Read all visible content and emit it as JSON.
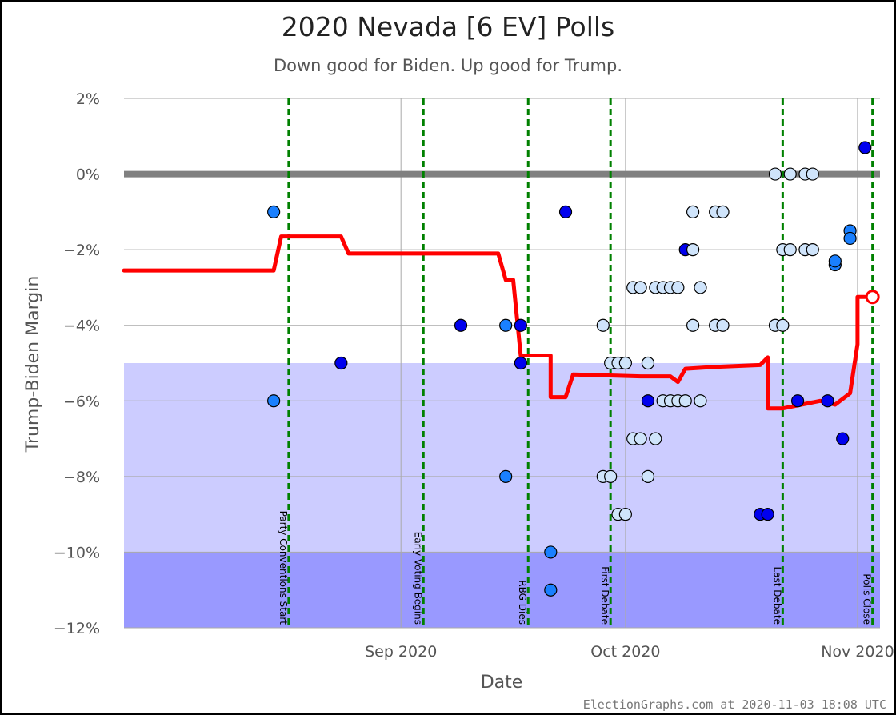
{
  "title": "2020 Nevada [6 EV] Polls",
  "subtitle": "Down good for Biden. Up good for Trump.",
  "credit": "ElectionGraphs.com at 2020-11-03 18:08 UTC",
  "chart_data": {
    "type": "scatter",
    "xlabel": "Date",
    "ylabel": "Trump-Biden Margin",
    "xlim": [
      "2020-07-26",
      "2020-11-04"
    ],
    "ylim": [
      -12,
      2
    ],
    "yticks": [
      2,
      0,
      -2,
      -4,
      -6,
      -8,
      -10,
      -12
    ],
    "ytick_labels": [
      "2%",
      "0%",
      "−2%",
      "−4%",
      "−6%",
      "−8%",
      "−10%",
      "−12%"
    ],
    "xticks": [
      {
        "date": "2020-09-01",
        "label": "Sep 2020"
      },
      {
        "date": "2020-10-01",
        "label": "Oct 2020"
      },
      {
        "date": "2020-11-01",
        "label": "Nov 2020"
      }
    ],
    "bands": [
      {
        "from": -5,
        "to": -10,
        "color": "#ccccff"
      },
      {
        "from": -10,
        "to": -12,
        "color": "#9999ff"
      }
    ],
    "zero_line_color": "#808080",
    "events": [
      {
        "date": "2020-08-17",
        "label": "Party Conventions Start"
      },
      {
        "date": "2020-09-04",
        "label": "Early Voting Begins"
      },
      {
        "date": "2020-09-18",
        "label": "RBG Dies"
      },
      {
        "date": "2020-09-29",
        "label": "First Debate"
      },
      {
        "date": "2020-10-22",
        "label": "Last Debate"
      },
      {
        "date": "2020-11-03",
        "label": "Polls Close"
      }
    ],
    "average_color": "#ff0000",
    "average": [
      {
        "x": "2020-07-26",
        "y": -2.55
      },
      {
        "x": "2020-08-15",
        "y": -2.55
      },
      {
        "x": "2020-08-16",
        "y": -1.65
      },
      {
        "x": "2020-08-24",
        "y": -1.65
      },
      {
        "x": "2020-08-25",
        "y": -2.1
      },
      {
        "x": "2020-09-14",
        "y": -2.1
      },
      {
        "x": "2020-09-15",
        "y": -2.8
      },
      {
        "x": "2020-09-16",
        "y": -2.8
      },
      {
        "x": "2020-09-17",
        "y": -4.8
      },
      {
        "x": "2020-09-21",
        "y": -4.8
      },
      {
        "x": "2020-09-21",
        "y": -5.9
      },
      {
        "x": "2020-09-23",
        "y": -5.9
      },
      {
        "x": "2020-09-24",
        "y": -5.3
      },
      {
        "x": "2020-10-03",
        "y": -5.35
      },
      {
        "x": "2020-10-07",
        "y": -5.35
      },
      {
        "x": "2020-10-08",
        "y": -5.5
      },
      {
        "x": "2020-10-09",
        "y": -5.15
      },
      {
        "x": "2020-10-13",
        "y": -5.1
      },
      {
        "x": "2020-10-19",
        "y": -5.05
      },
      {
        "x": "2020-10-20",
        "y": -4.85
      },
      {
        "x": "2020-10-20",
        "y": -6.2
      },
      {
        "x": "2020-10-22",
        "y": -6.2
      },
      {
        "x": "2020-10-27",
        "y": -6.0
      },
      {
        "x": "2020-10-29",
        "y": -6.1
      },
      {
        "x": "2020-10-31",
        "y": -5.8
      },
      {
        "x": "2020-11-01",
        "y": -4.5
      },
      {
        "x": "2020-11-01",
        "y": -3.25
      },
      {
        "x": "2020-11-03",
        "y": -3.25
      }
    ],
    "current_average": {
      "x": "2020-11-03",
      "y": -3.25
    },
    "poll_colors": {
      "recent": "#0000ee",
      "mid": "#1a80ff",
      "old": "#cfe4fb"
    },
    "polls": [
      {
        "x": "2020-08-15",
        "y": -1,
        "c": "mid"
      },
      {
        "x": "2020-08-15",
        "y": -6,
        "c": "mid"
      },
      {
        "x": "2020-08-24",
        "y": -5,
        "c": "recent"
      },
      {
        "x": "2020-09-09",
        "y": -4,
        "c": "recent"
      },
      {
        "x": "2020-09-15",
        "y": -4,
        "c": "mid"
      },
      {
        "x": "2020-09-15",
        "y": -8,
        "c": "mid"
      },
      {
        "x": "2020-09-17",
        "y": -5,
        "c": "recent"
      },
      {
        "x": "2020-09-17",
        "y": -4,
        "c": "recent"
      },
      {
        "x": "2020-09-21",
        "y": -10,
        "c": "mid"
      },
      {
        "x": "2020-09-21",
        "y": -11,
        "c": "mid"
      },
      {
        "x": "2020-09-23",
        "y": -1,
        "c": "recent"
      },
      {
        "x": "2020-09-28",
        "y": -4,
        "c": "old"
      },
      {
        "x": "2020-09-28",
        "y": -8,
        "c": "old"
      },
      {
        "x": "2020-09-29",
        "y": -8,
        "c": "old"
      },
      {
        "x": "2020-09-29",
        "y": -5,
        "c": "old"
      },
      {
        "x": "2020-09-30",
        "y": -9,
        "c": "old"
      },
      {
        "x": "2020-09-30",
        "y": -5,
        "c": "old"
      },
      {
        "x": "2020-10-01",
        "y": -5,
        "c": "old"
      },
      {
        "x": "2020-10-01",
        "y": -9,
        "c": "old"
      },
      {
        "x": "2020-10-02",
        "y": -3,
        "c": "old"
      },
      {
        "x": "2020-10-02",
        "y": -7,
        "c": "old"
      },
      {
        "x": "2020-10-03",
        "y": -3,
        "c": "old"
      },
      {
        "x": "2020-10-03",
        "y": -7,
        "c": "old"
      },
      {
        "x": "2020-10-04",
        "y": -6,
        "c": "recent"
      },
      {
        "x": "2020-10-04",
        "y": -5,
        "c": "old"
      },
      {
        "x": "2020-10-04",
        "y": -8,
        "c": "old"
      },
      {
        "x": "2020-10-05",
        "y": -3,
        "c": "old"
      },
      {
        "x": "2020-10-05",
        "y": -7,
        "c": "old"
      },
      {
        "x": "2020-10-06",
        "y": -3,
        "c": "old"
      },
      {
        "x": "2020-10-06",
        "y": -6,
        "c": "old"
      },
      {
        "x": "2020-10-07",
        "y": -3,
        "c": "old"
      },
      {
        "x": "2020-10-07",
        "y": -6,
        "c": "old"
      },
      {
        "x": "2020-10-08",
        "y": -3,
        "c": "old"
      },
      {
        "x": "2020-10-08",
        "y": -6,
        "c": "old"
      },
      {
        "x": "2020-10-09",
        "y": -2,
        "c": "recent"
      },
      {
        "x": "2020-10-09",
        "y": -6,
        "c": "old"
      },
      {
        "x": "2020-10-10",
        "y": -2,
        "c": "old"
      },
      {
        "x": "2020-10-10",
        "y": -1,
        "c": "old"
      },
      {
        "x": "2020-10-10",
        "y": -4,
        "c": "old"
      },
      {
        "x": "2020-10-11",
        "y": -3,
        "c": "old"
      },
      {
        "x": "2020-10-11",
        "y": -6,
        "c": "old"
      },
      {
        "x": "2020-10-13",
        "y": -1,
        "c": "old"
      },
      {
        "x": "2020-10-13",
        "y": -4,
        "c": "old"
      },
      {
        "x": "2020-10-14",
        "y": -1,
        "c": "old"
      },
      {
        "x": "2020-10-14",
        "y": -4,
        "c": "old"
      },
      {
        "x": "2020-10-19",
        "y": -9,
        "c": "recent"
      },
      {
        "x": "2020-10-20",
        "y": -9,
        "c": "recent"
      },
      {
        "x": "2020-10-21",
        "y": 0,
        "c": "old"
      },
      {
        "x": "2020-10-21",
        "y": -4,
        "c": "old"
      },
      {
        "x": "2020-10-22",
        "y": -2,
        "c": "old"
      },
      {
        "x": "2020-10-22",
        "y": -4,
        "c": "old"
      },
      {
        "x": "2020-10-23",
        "y": 0,
        "c": "old"
      },
      {
        "x": "2020-10-23",
        "y": -2,
        "c": "old"
      },
      {
        "x": "2020-10-24",
        "y": -6,
        "c": "recent"
      },
      {
        "x": "2020-10-25",
        "y": 0,
        "c": "old"
      },
      {
        "x": "2020-10-25",
        "y": -2,
        "c": "old"
      },
      {
        "x": "2020-10-26",
        "y": 0,
        "c": "old"
      },
      {
        "x": "2020-10-26",
        "y": -2,
        "c": "old"
      },
      {
        "x": "2020-10-28",
        "y": -6,
        "c": "recent"
      },
      {
        "x": "2020-10-29",
        "y": -2.4,
        "c": "mid"
      },
      {
        "x": "2020-10-29",
        "y": -2.3,
        "c": "mid"
      },
      {
        "x": "2020-10-30",
        "y": -7,
        "c": "recent"
      },
      {
        "x": "2020-10-31",
        "y": -1.5,
        "c": "mid"
      },
      {
        "x": "2020-10-31",
        "y": -1.7,
        "c": "mid"
      },
      {
        "x": "2020-11-02",
        "y": 0.7,
        "c": "recent"
      }
    ]
  }
}
